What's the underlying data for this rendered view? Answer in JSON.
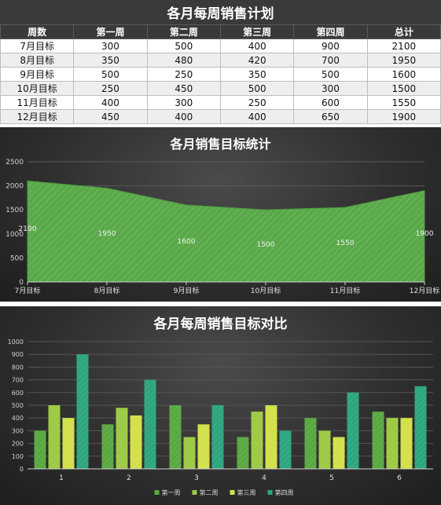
{
  "table": {
    "title": "各月每周销售计划",
    "headers": [
      "周数",
      "第一周",
      "第二周",
      "第三周",
      "第四周",
      "总计"
    ],
    "rows": [
      [
        "7月目标",
        "300",
        "500",
        "400",
        "900",
        "2100"
      ],
      [
        "8月目标",
        "350",
        "480",
        "420",
        "700",
        "1950"
      ],
      [
        "9月目标",
        "500",
        "250",
        "350",
        "500",
        "1600"
      ],
      [
        "10月目标",
        "250",
        "450",
        "500",
        "300",
        "1500"
      ],
      [
        "11月目标",
        "400",
        "300",
        "250",
        "600",
        "1550"
      ],
      [
        "12月目标",
        "450",
        "400",
        "400",
        "650",
        "1900"
      ]
    ]
  },
  "chart_data": [
    {
      "type": "area",
      "title": "各月销售目标统计",
      "categories": [
        "7月目标",
        "8月目标",
        "9月目标",
        "10月目标",
        "11月目标",
        "12月目标"
      ],
      "series": [
        {
          "values": [
            2100,
            1950,
            1600,
            1500,
            1550,
            1900
          ]
        }
      ],
      "data_labels": [
        "2100",
        "1950",
        "1600",
        "1500",
        "1550",
        "1900"
      ],
      "ylim": [
        0,
        2500
      ],
      "yticks": [
        0,
        500,
        1000,
        1500,
        2000,
        2500
      ],
      "grid": true,
      "colors": {
        "fill": "#5aa84a"
      }
    },
    {
      "type": "bar",
      "title": "各月每周销售目标对比",
      "categories": [
        "1",
        "2",
        "3",
        "4",
        "5",
        "6"
      ],
      "series": [
        {
          "name": "第一周",
          "values": [
            300,
            350,
            500,
            250,
            400,
            450
          ],
          "color": "#5aa842"
        },
        {
          "name": "第二周",
          "values": [
            500,
            480,
            250,
            450,
            300,
            400
          ],
          "color": "#9dc944"
        },
        {
          "name": "第三周",
          "values": [
            400,
            420,
            350,
            500,
            250,
            400
          ],
          "color": "#d2e04a"
        },
        {
          "name": "第四周",
          "values": [
            900,
            700,
            500,
            300,
            600,
            650
          ],
          "color": "#2ea57f"
        }
      ],
      "ylim": [
        0,
        1000
      ],
      "yticks": [
        0,
        100,
        200,
        300,
        400,
        500,
        600,
        700,
        800,
        900,
        1000
      ],
      "grid": true,
      "legend": "bottom"
    }
  ]
}
